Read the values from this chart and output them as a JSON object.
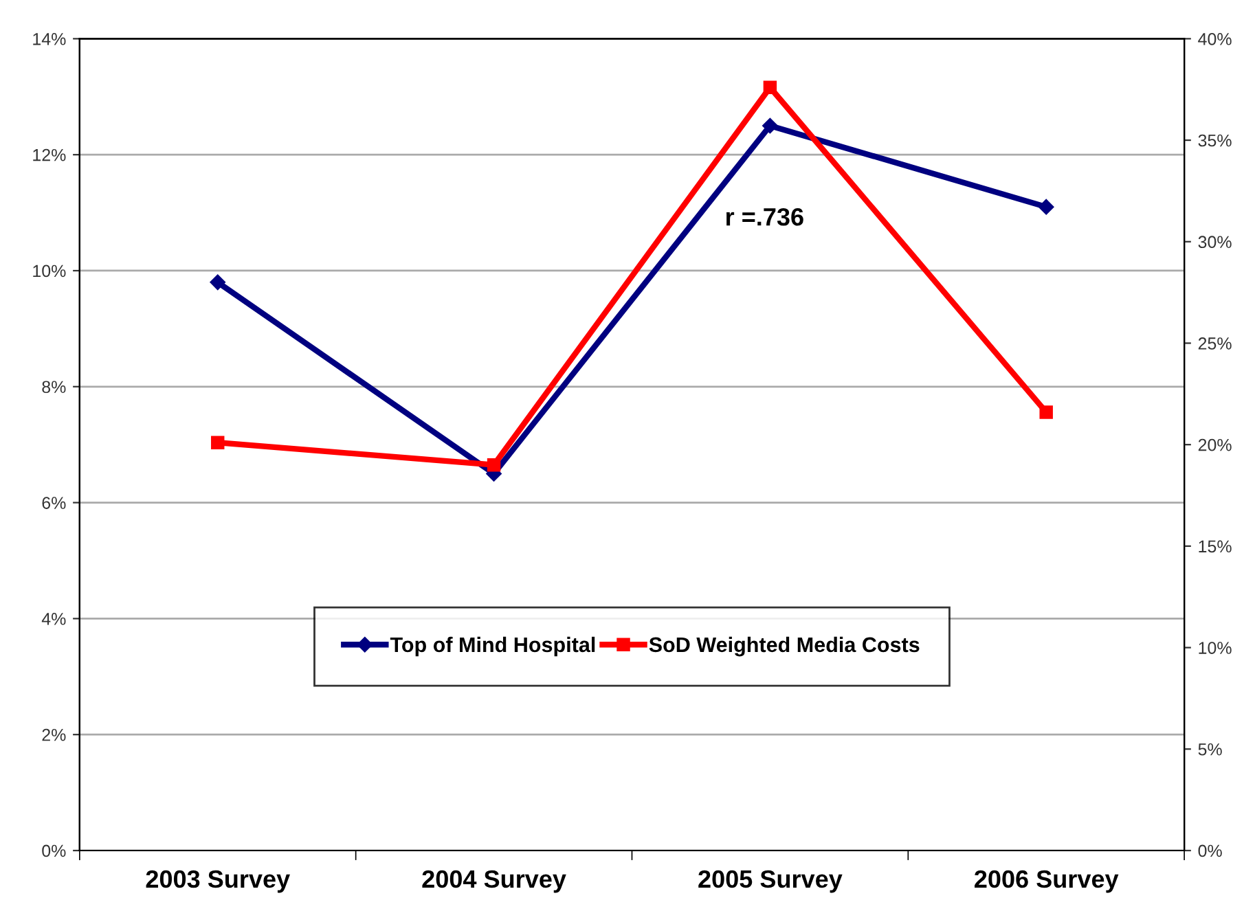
{
  "chart_data": {
    "type": "line",
    "categories": [
      "2003 Survey",
      "2004 Survey",
      "2005 Survey",
      "2006 Survey"
    ],
    "series": [
      {
        "name": "Top of Mind Hospital",
        "color": "#000080",
        "marker": "diamond",
        "values": [
          9.8,
          6.5,
          12.5,
          11.1
        ]
      },
      {
        "name": "SoD Weighted Media Costs",
        "color": "#ff0000",
        "marker": "square",
        "axis": "y2",
        "values": [
          20.1,
          19.0,
          37.6,
          21.6
        ]
      }
    ],
    "ylim": [
      0,
      14
    ],
    "yticks": [
      {
        "value": 0,
        "label": "0%"
      },
      {
        "value": 2,
        "label": "2%"
      },
      {
        "value": 4,
        "label": "4%"
      },
      {
        "value": 6,
        "label": "6%"
      },
      {
        "value": 8,
        "label": "8%"
      },
      {
        "value": 10,
        "label": "10%"
      },
      {
        "value": 12,
        "label": "12%"
      },
      {
        "value": 14,
        "label": "14%"
      }
    ],
    "y2lim": [
      0,
      40
    ],
    "y2ticks": [
      {
        "value": 0,
        "label": "0%"
      },
      {
        "value": 5,
        "label": "5%"
      },
      {
        "value": 10,
        "label": "10%"
      },
      {
        "value": 15,
        "label": "15%"
      },
      {
        "value": 20,
        "label": "20%"
      },
      {
        "value": 25,
        "label": "25%"
      },
      {
        "value": 30,
        "label": "30%"
      },
      {
        "value": 35,
        "label": "35%"
      },
      {
        "value": 40,
        "label": "40%"
      }
    ],
    "annotations": [
      "r =.736"
    ],
    "grid": "y",
    "legend": "bottom",
    "line_style": "solid"
  }
}
